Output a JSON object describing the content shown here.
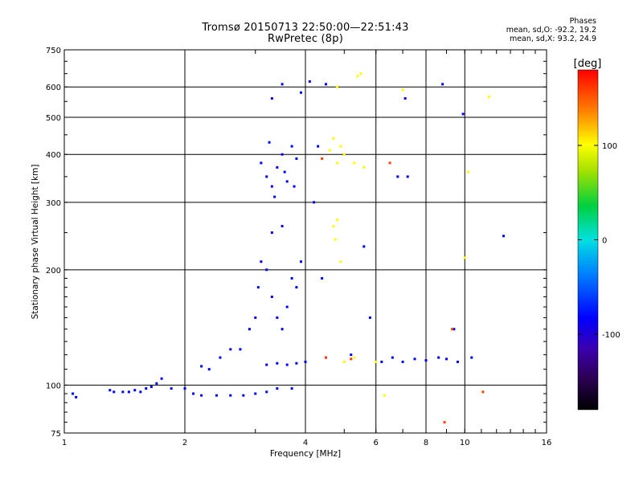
{
  "header": {
    "title_line1": "Tromsø 20150713 22:50:00—22:51:43",
    "title_line2": "RwPretec (8p)",
    "stats_title": "Phases",
    "stats_O": "mean, sd,O: -92.2, 19.2",
    "stats_X": "mean, sd,X:  93.2, 24.9"
  },
  "colors": {
    "grid": "#000000",
    "low_phase": "#1a2cff",
    "high_phase": "#ffee00"
  },
  "chart_data": {
    "type": "scatter",
    "title": "Tromsø 20150713 22:50:00—22:51:43",
    "subtitle": "RwPretec (8p)",
    "xlabel": "Frequency [MHz]",
    "ylabel": "Stationary phase Virtual Height [km]",
    "xscale": "log",
    "yscale": "log",
    "xlim": [
      1,
      16
    ],
    "ylim": [
      75,
      750
    ],
    "x_ticks": [
      1,
      2,
      4,
      6,
      8,
      10,
      16
    ],
    "y_ticks": [
      75,
      100,
      200,
      300,
      400,
      500,
      600,
      750
    ],
    "grid": true,
    "colorbar": {
      "label": "[deg]",
      "range": [
        -180,
        180
      ],
      "ticks": [
        100,
        0,
        -100
      ],
      "colormap": "rainbow (black-purple-blue-cyan-green-yellow-orange-red)"
    },
    "series": [
      {
        "name": "O",
        "points": [
          [
            1.05,
            95,
            -100
          ],
          [
            1.07,
            93,
            -100
          ],
          [
            1.3,
            97,
            -100
          ],
          [
            1.33,
            96,
            -100
          ],
          [
            1.4,
            96,
            -100
          ],
          [
            1.45,
            96,
            -100
          ],
          [
            1.5,
            97,
            -100
          ],
          [
            1.55,
            96,
            -100
          ],
          [
            1.6,
            98,
            -100
          ],
          [
            1.65,
            99,
            -100
          ],
          [
            1.7,
            101,
            -100
          ],
          [
            1.75,
            104,
            -100
          ],
          [
            1.85,
            98,
            -100
          ],
          [
            2.0,
            98,
            -100
          ],
          [
            2.1,
            95,
            -100
          ],
          [
            2.2,
            94,
            -100
          ],
          [
            2.4,
            94,
            -100
          ],
          [
            2.6,
            94,
            -100
          ],
          [
            2.8,
            94,
            -100
          ],
          [
            3.0,
            95,
            -100
          ],
          [
            3.2,
            96,
            -100
          ],
          [
            3.4,
            98,
            -100
          ],
          [
            3.7,
            98,
            -100
          ],
          [
            2.2,
            112,
            -100
          ],
          [
            2.3,
            110,
            -100
          ],
          [
            2.45,
            118,
            -100
          ],
          [
            2.6,
            124,
            -100
          ],
          [
            2.75,
            124,
            -100
          ],
          [
            2.9,
            140,
            -100
          ],
          [
            3.0,
            150,
            -100
          ],
          [
            3.05,
            180,
            -100
          ],
          [
            3.1,
            210,
            -100
          ],
          [
            3.1,
            380,
            -100
          ],
          [
            3.2,
            350,
            -100
          ],
          [
            3.25,
            430,
            -100
          ],
          [
            3.3,
            330,
            -100
          ],
          [
            3.35,
            310,
            -100
          ],
          [
            3.4,
            370,
            -100
          ],
          [
            3.5,
            400,
            -100
          ],
          [
            3.55,
            360,
            -100
          ],
          [
            3.6,
            340,
            -100
          ],
          [
            3.7,
            420,
            -100
          ],
          [
            3.75,
            330,
            -100
          ],
          [
            3.8,
            390,
            -100
          ],
          [
            3.3,
            560,
            -100
          ],
          [
            3.5,
            610,
            -100
          ],
          [
            3.9,
            580,
            -100
          ],
          [
            3.2,
            200,
            -100
          ],
          [
            3.3,
            170,
            -100
          ],
          [
            3.4,
            150,
            -100
          ],
          [
            3.5,
            140,
            -100
          ],
          [
            3.6,
            160,
            -100
          ],
          [
            3.7,
            190,
            -100
          ],
          [
            3.8,
            180,
            -100
          ],
          [
            3.9,
            210,
            -100
          ],
          [
            3.3,
            250,
            -100
          ],
          [
            3.5,
            260,
            -100
          ],
          [
            3.2,
            113,
            -100
          ],
          [
            3.4,
            114,
            -100
          ],
          [
            3.6,
            113,
            -100
          ],
          [
            3.8,
            114,
            -100
          ],
          [
            4.0,
            115,
            -100
          ],
          [
            4.2,
            300,
            -100
          ],
          [
            4.3,
            420,
            -100
          ],
          [
            4.4,
            190,
            -100
          ],
          [
            4.5,
            610,
            -100
          ],
          [
            4.1,
            620,
            -100
          ],
          [
            4.5,
            118,
            -100
          ],
          [
            5.2,
            120,
            -100
          ],
          [
            5.6,
            230,
            -100
          ],
          [
            5.8,
            150,
            -100
          ],
          [
            6.2,
            115,
            -100
          ],
          [
            6.6,
            118,
            -100
          ],
          [
            7.0,
            115,
            -100
          ],
          [
            7.5,
            117,
            -100
          ],
          [
            8.0,
            116,
            -100
          ],
          [
            8.6,
            118,
            -100
          ],
          [
            9.0,
            117,
            -100
          ],
          [
            9.6,
            115,
            -100
          ],
          [
            10.4,
            118,
            -100
          ],
          [
            8.8,
            610,
            -100
          ],
          [
            9.9,
            510,
            -100
          ],
          [
            6.8,
            350,
            -100
          ],
          [
            7.2,
            350,
            -100
          ],
          [
            7.1,
            560,
            -100
          ],
          [
            9.4,
            140,
            -100
          ],
          [
            12.5,
            245,
            -100
          ]
        ]
      },
      {
        "name": "X",
        "points": [
          [
            4.6,
            410,
            100
          ],
          [
            4.7,
            440,
            100
          ],
          [
            4.8,
            380,
            100
          ],
          [
            4.9,
            420,
            100
          ],
          [
            5.0,
            400,
            100
          ],
          [
            4.7,
            260,
            100
          ],
          [
            4.75,
            240,
            100
          ],
          [
            4.8,
            270,
            100
          ],
          [
            5.3,
            380,
            100
          ],
          [
            5.6,
            370,
            100
          ],
          [
            4.8,
            600,
            100
          ],
          [
            5.4,
            640,
            100
          ],
          [
            5.5,
            650,
            100
          ],
          [
            5.0,
            115,
            100
          ],
          [
            5.3,
            118,
            100
          ],
          [
            6.0,
            115,
            100
          ],
          [
            4.9,
            210,
            100
          ],
          [
            7.0,
            590,
            100
          ],
          [
            10.0,
            215,
            100
          ],
          [
            10.2,
            360,
            100
          ],
          [
            11.5,
            565,
            100
          ],
          [
            6.3,
            94,
            100
          ],
          [
            4.5,
            118,
            160
          ],
          [
            5.2,
            117,
            160
          ],
          [
            6.5,
            380,
            160
          ],
          [
            8.9,
            80,
            160
          ],
          [
            11.1,
            96,
            160
          ],
          [
            4.4,
            390,
            160
          ],
          [
            9.3,
            140,
            160
          ]
        ]
      }
    ]
  }
}
